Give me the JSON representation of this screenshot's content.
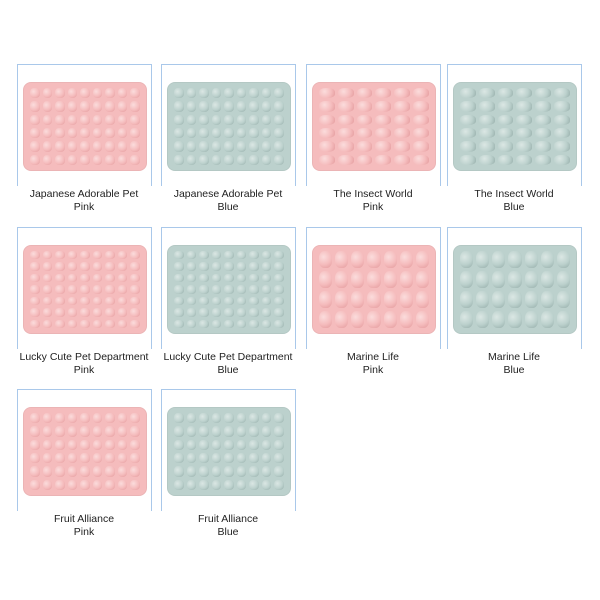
{
  "colors": {
    "pink": "#f5bcbd",
    "blue": "#bcd1cd",
    "frame": "#a9c8ea"
  },
  "products": [
    {
      "name": "Japanese Adorable Pet",
      "color": "Pink",
      "rows": 6,
      "cols": 9
    },
    {
      "name": "Japanese Adorable Pet",
      "color": "Blue",
      "rows": 6,
      "cols": 9
    },
    {
      "name": "The Insect World",
      "color": "Pink",
      "rows": 6,
      "cols": 6
    },
    {
      "name": "The Insect World",
      "color": "Blue",
      "rows": 6,
      "cols": 6
    },
    {
      "name": "Lucky Cute Pet Department",
      "color": "Pink",
      "rows": 7,
      "cols": 9
    },
    {
      "name": "Lucky Cute Pet Department",
      "color": "Blue",
      "rows": 7,
      "cols": 9
    },
    {
      "name": "Marine Life",
      "color": "Pink",
      "rows": 4,
      "cols": 7
    },
    {
      "name": "Marine Life",
      "color": "Blue",
      "rows": 4,
      "cols": 7
    },
    {
      "name": "Fruit Alliance",
      "color": "Pink",
      "rows": 6,
      "cols": 9
    },
    {
      "name": "Fruit Alliance",
      "color": "Blue",
      "rows": 6,
      "cols": 9
    }
  ]
}
